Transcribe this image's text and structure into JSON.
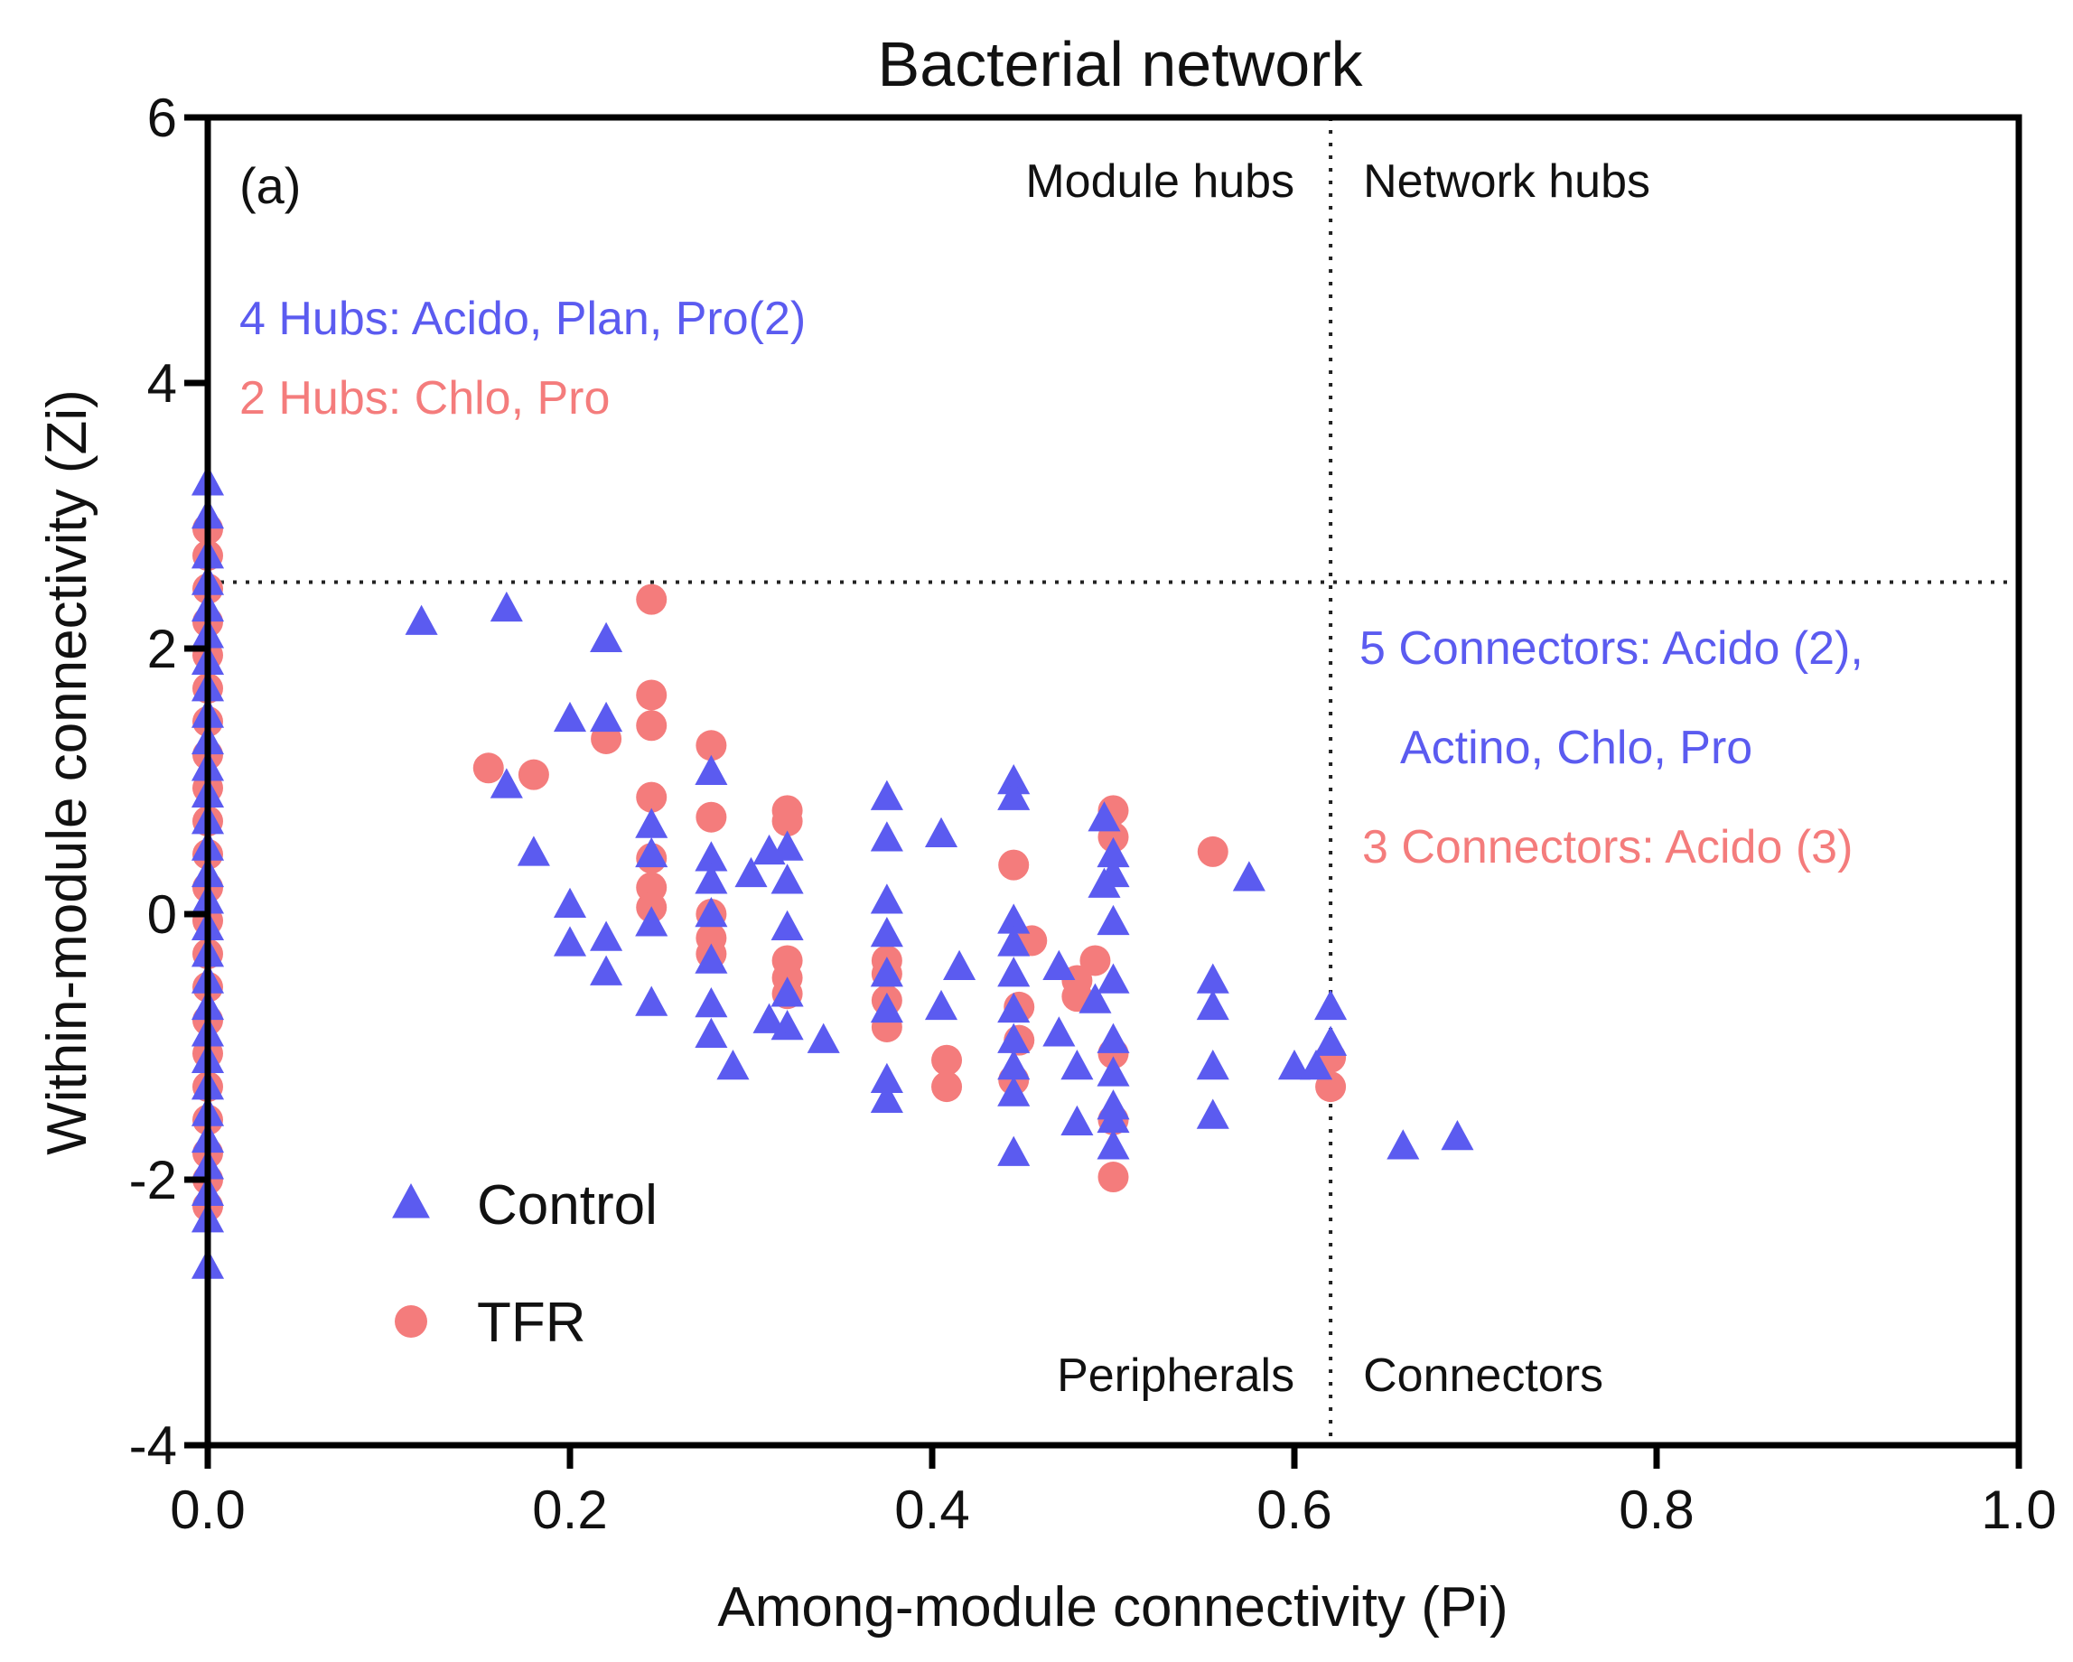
{
  "chart_data": {
    "type": "scatter",
    "title": "Bacterial network",
    "xlabel": "Among-module connectivity (Pi)",
    "ylabel": "Within-module connectivity (Zi)",
    "xlim": [
      0,
      1.0
    ],
    "ylim": [
      -4,
      6
    ],
    "xticks": [
      "0.0",
      "0.2",
      "0.4",
      "0.6",
      "0.8",
      "1.0"
    ],
    "yticks": [
      "-4",
      "-2",
      "0",
      "2",
      "4",
      "6"
    ],
    "thresholds": {
      "pi": 0.62,
      "zi": 2.5
    },
    "panel_label": "(a)",
    "quadrant_labels": {
      "module_hubs": "Module hubs",
      "network_hubs": "Network hubs",
      "peripherals": "Peripherals",
      "connectors": "Connectors"
    },
    "annotations": [
      {
        "id": "hubs_control",
        "text": "4 Hubs: Acido, Plan, Pro(2)",
        "series": "Control"
      },
      {
        "id": "hubs_tfr",
        "text": "2 Hubs: Chlo, Pro",
        "series": "TFR"
      },
      {
        "id": "connectors_control_1",
        "text": "5 Connectors: Acido (2),",
        "series": "Control"
      },
      {
        "id": "connectors_control_2",
        "text": "Actino, Chlo, Pro",
        "series": "Control"
      },
      {
        "id": "connectors_tfr",
        "text": "3 Connectors: Acido (3)",
        "series": "TFR"
      }
    ],
    "legend": {
      "position": "bottom-left",
      "entries": [
        "Control",
        "TFR"
      ]
    },
    "series": [
      {
        "name": "Control",
        "marker": "triangle",
        "color": "#5b5bf0",
        "points": [
          [
            0.118,
            2.2
          ],
          [
            0.165,
            2.3
          ],
          [
            0.22,
            2.07
          ],
          [
            0.2,
            1.47
          ],
          [
            0.22,
            1.47
          ],
          [
            0.165,
            0.97
          ],
          [
            0.18,
            0.46
          ],
          [
            0.2,
            0.07
          ],
          [
            0.2,
            -0.22
          ],
          [
            0.22,
            -0.18
          ],
          [
            0.22,
            -0.44
          ],
          [
            0.245,
            0.67
          ],
          [
            0.245,
            0.45
          ],
          [
            0.245,
            -0.07
          ],
          [
            0.245,
            -0.67
          ],
          [
            0.278,
            1.07
          ],
          [
            0.278,
            0.42
          ],
          [
            0.278,
            0.25
          ],
          [
            0.278,
            0.0
          ],
          [
            0.278,
            -0.35
          ],
          [
            0.278,
            -0.68
          ],
          [
            0.278,
            -0.91
          ],
          [
            0.29,
            -1.15
          ],
          [
            0.3,
            0.3
          ],
          [
            0.31,
            0.47
          ],
          [
            0.32,
            0.5
          ],
          [
            0.32,
            0.25
          ],
          [
            0.32,
            -0.1
          ],
          [
            0.32,
            -0.6
          ],
          [
            0.32,
            -0.85
          ],
          [
            0.31,
            -0.8
          ],
          [
            0.34,
            -0.95
          ],
          [
            0.375,
            0.88
          ],
          [
            0.375,
            0.57
          ],
          [
            0.375,
            0.1
          ],
          [
            0.375,
            -0.15
          ],
          [
            0.375,
            -0.45
          ],
          [
            0.375,
            -0.72
          ],
          [
            0.375,
            -1.25
          ],
          [
            0.375,
            -1.4
          ],
          [
            0.405,
            0.6
          ],
          [
            0.415,
            -0.4
          ],
          [
            0.405,
            -0.7
          ],
          [
            0.445,
            1.0
          ],
          [
            0.445,
            0.88
          ],
          [
            0.445,
            -0.05
          ],
          [
            0.445,
            -0.22
          ],
          [
            0.445,
            -0.45
          ],
          [
            0.445,
            -0.72
          ],
          [
            0.445,
            -0.95
          ],
          [
            0.445,
            -1.15
          ],
          [
            0.445,
            -1.35
          ],
          [
            0.445,
            -1.8
          ],
          [
            0.47,
            -0.4
          ],
          [
            0.47,
            -0.9
          ],
          [
            0.48,
            -1.15
          ],
          [
            0.48,
            -1.57
          ],
          [
            0.495,
            0.72
          ],
          [
            0.495,
            0.22
          ],
          [
            0.5,
            0.45
          ],
          [
            0.5,
            0.3
          ],
          [
            0.5,
            -0.06
          ],
          [
            0.5,
            -0.5
          ],
          [
            0.49,
            -0.65
          ],
          [
            0.5,
            -0.95
          ],
          [
            0.5,
            -1.2
          ],
          [
            0.5,
            -1.45
          ],
          [
            0.5,
            -1.75
          ],
          [
            0.5,
            -1.55
          ],
          [
            0.555,
            -0.5
          ],
          [
            0.555,
            -0.7
          ],
          [
            0.555,
            -1.15
          ],
          [
            0.555,
            -1.52
          ],
          [
            0.575,
            0.27
          ],
          [
            0.6,
            -1.15
          ],
          [
            0.612,
            -1.15
          ],
          [
            0.62,
            -0.7
          ],
          [
            0.62,
            -0.97
          ],
          [
            0.66,
            -1.75
          ],
          [
            0.69,
            -1.68
          ],
          [
            0.0,
            3.25
          ],
          [
            0.0,
            3.0
          ],
          [
            0.0,
            2.7
          ],
          [
            0.0,
            2.5
          ],
          [
            0.0,
            2.3
          ],
          [
            0.0,
            2.1
          ],
          [
            0.0,
            1.9
          ],
          [
            0.0,
            1.7
          ],
          [
            0.0,
            1.5
          ],
          [
            0.0,
            1.3
          ],
          [
            0.0,
            1.1
          ],
          [
            0.0,
            0.9
          ],
          [
            0.0,
            0.7
          ],
          [
            0.0,
            0.5
          ],
          [
            0.0,
            0.3
          ],
          [
            0.0,
            0.1
          ],
          [
            0.0,
            -0.1
          ],
          [
            0.0,
            -0.3
          ],
          [
            0.0,
            -0.5
          ],
          [
            0.0,
            -0.7
          ],
          [
            0.0,
            -0.9
          ],
          [
            0.0,
            -1.1
          ],
          [
            0.0,
            -1.3
          ],
          [
            0.0,
            -1.5
          ],
          [
            0.0,
            -1.7
          ],
          [
            0.0,
            -1.9
          ],
          [
            0.0,
            -2.1
          ],
          [
            0.0,
            -2.3
          ],
          [
            0.0,
            -2.65
          ]
        ]
      },
      {
        "name": "TFR",
        "marker": "circle",
        "color": "#f47c7c",
        "points": [
          [
            0.155,
            1.1
          ],
          [
            0.18,
            1.05
          ],
          [
            0.22,
            1.32
          ],
          [
            0.245,
            2.37
          ],
          [
            0.245,
            1.65
          ],
          [
            0.245,
            1.42
          ],
          [
            0.245,
            0.88
          ],
          [
            0.245,
            0.42
          ],
          [
            0.245,
            0.2
          ],
          [
            0.245,
            0.05
          ],
          [
            0.278,
            1.27
          ],
          [
            0.278,
            0.73
          ],
          [
            0.278,
            0.0
          ],
          [
            0.278,
            -0.18
          ],
          [
            0.278,
            -0.3
          ],
          [
            0.32,
            0.78
          ],
          [
            0.32,
            0.7
          ],
          [
            0.32,
            -0.35
          ],
          [
            0.32,
            -0.48
          ],
          [
            0.32,
            -0.6
          ],
          [
            0.375,
            -0.45
          ],
          [
            0.375,
            -0.65
          ],
          [
            0.375,
            -0.85
          ],
          [
            0.375,
            -0.35
          ],
          [
            0.408,
            -1.1
          ],
          [
            0.408,
            -1.3
          ],
          [
            0.445,
            0.37
          ],
          [
            0.448,
            -0.7
          ],
          [
            0.448,
            -0.95
          ],
          [
            0.445,
            -1.25
          ],
          [
            0.455,
            -0.2
          ],
          [
            0.48,
            -0.5
          ],
          [
            0.48,
            -0.62
          ],
          [
            0.49,
            -0.35
          ],
          [
            0.5,
            0.78
          ],
          [
            0.5,
            0.58
          ],
          [
            0.5,
            -1.05
          ],
          [
            0.5,
            -1.55
          ],
          [
            0.5,
            -1.98
          ],
          [
            0.555,
            0.47
          ],
          [
            0.62,
            -1.08
          ],
          [
            0.62,
            -1.3
          ],
          [
            0.0,
            2.9
          ],
          [
            0.0,
            2.7
          ],
          [
            0.0,
            2.45
          ],
          [
            0.0,
            2.2
          ],
          [
            0.0,
            1.95
          ],
          [
            0.0,
            1.7
          ],
          [
            0.0,
            1.45
          ],
          [
            0.0,
            1.2
          ],
          [
            0.0,
            0.95
          ],
          [
            0.0,
            0.7
          ],
          [
            0.0,
            0.45
          ],
          [
            0.0,
            0.2
          ],
          [
            0.0,
            -0.05
          ],
          [
            0.0,
            -0.3
          ],
          [
            0.0,
            -0.55
          ],
          [
            0.0,
            -0.8
          ],
          [
            0.0,
            -1.05
          ],
          [
            0.0,
            -1.3
          ],
          [
            0.0,
            -1.55
          ],
          [
            0.0,
            -1.8
          ],
          [
            0.0,
            -2.0
          ],
          [
            0.0,
            -2.2
          ]
        ]
      }
    ]
  }
}
